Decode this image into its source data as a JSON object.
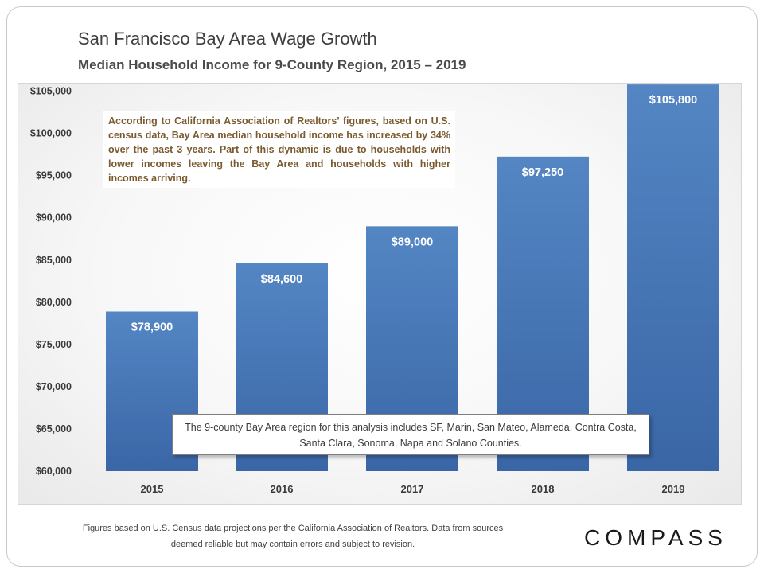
{
  "header": {
    "title": "San Francisco Bay Area Wage Growth",
    "subtitle": "Median Household Income for 9-County Region, 2015 – 2019"
  },
  "annotations": {
    "top": "According to California Association of Realtors’ figures, based on U.S. census data, Bay Area median household income has increased by 34% over the past 3 years. Part of this dynamic is due to households with lower incomes leaving the Bay Area and households with higher incomes arriving.",
    "bottom": "The 9-county Bay Area region for this analysis includes SF, Marin, San Mateo, Alameda, Contra Costa, Santa Clara, Sonoma, Napa and Solano Counties."
  },
  "footer": {
    "note": "Figures based on U.S. Census data projections per the California Association of Realtors. Data from sources deemed reliable but may contain errors and subject to revision.",
    "logo": "COMPASS"
  },
  "chart_data": {
    "type": "bar",
    "categories": [
      "2015",
      "2016",
      "2017",
      "2018",
      "2019"
    ],
    "values": [
      78900,
      84600,
      89000,
      97250,
      105800
    ],
    "data_labels": [
      "$78,900",
      "$84,600",
      "$89,000",
      "$97,250",
      "$105,800"
    ],
    "y_ticks": [
      60000,
      65000,
      70000,
      75000,
      80000,
      85000,
      90000,
      95000,
      100000,
      105000
    ],
    "y_tick_labels": [
      "$60,000",
      "$65,000",
      "$70,000",
      "$75,000",
      "$80,000",
      "$85,000",
      "$90,000",
      "$95,000",
      "$100,000",
      "$105,000"
    ],
    "ylim": [
      60000,
      106000
    ],
    "grid": false,
    "colors": {
      "bar_top": "#5486c4",
      "bar_bottom": "#3a66a6",
      "label": "#ffffff",
      "axis_text": "#3a3a3a"
    }
  }
}
